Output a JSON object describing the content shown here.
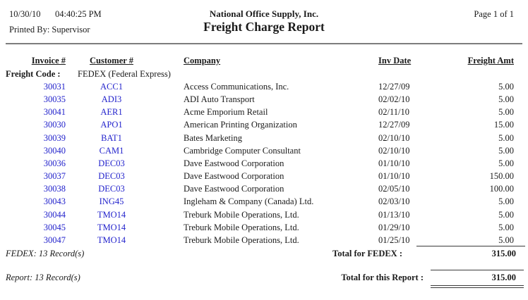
{
  "colors": {
    "link_blue": "#2323cc",
    "text": "#1a1a1a",
    "rule_gray": "#7d7d7d"
  },
  "page_header": {
    "date": "10/30/10",
    "time": "04:40:25 PM",
    "printed_by": "Printed By: Supervisor",
    "company": "National Office Supply, Inc.",
    "title": "Freight Charge Report",
    "page_info": "Page 1 of 1"
  },
  "columns": {
    "invoice": "Invoice #",
    "customer": "Customer #",
    "company": "Company",
    "inv_date": "Inv Date",
    "freight_amt": "Freight Amt"
  },
  "group_header": {
    "label": "Freight Code :",
    "value": "FEDEX (Federal Express)"
  },
  "rows": [
    {
      "invoice": "30031",
      "customer": "ACC1",
      "company": "Access Communications, Inc.",
      "inv_date": "12/27/09",
      "amount": "5.00"
    },
    {
      "invoice": "30035",
      "customer": "ADI3",
      "company": "ADI Auto Transport",
      "inv_date": "02/02/10",
      "amount": "5.00"
    },
    {
      "invoice": "30041",
      "customer": "AER1",
      "company": "Acme Emporium Retail",
      "inv_date": "02/11/10",
      "amount": "5.00"
    },
    {
      "invoice": "30030",
      "customer": "APO1",
      "company": "American Printing Organization",
      "inv_date": "12/27/09",
      "amount": "15.00"
    },
    {
      "invoice": "30039",
      "customer": "BAT1",
      "company": "Bates Marketing",
      "inv_date": "02/10/10",
      "amount": "5.00"
    },
    {
      "invoice": "30040",
      "customer": "CAM1",
      "company": "Cambridge Computer Consultant",
      "inv_date": "02/10/10",
      "amount": "5.00"
    },
    {
      "invoice": "30036",
      "customer": "DEC03",
      "company": "Dave Eastwood Corporation",
      "inv_date": "01/10/10",
      "amount": "5.00"
    },
    {
      "invoice": "30037",
      "customer": "DEC03",
      "company": "Dave Eastwood Corporation",
      "inv_date": "01/10/10",
      "amount": "150.00"
    },
    {
      "invoice": "30038",
      "customer": "DEC03",
      "company": "Dave Eastwood Corporation",
      "inv_date": "02/05/10",
      "amount": "100.00"
    },
    {
      "invoice": "30043",
      "customer": "ING45",
      "company": "Ingleham & Company (Canada) Ltd.",
      "inv_date": "02/03/10",
      "amount": "5.00"
    },
    {
      "invoice": "30044",
      "customer": "TMO14",
      "company": "Treburk Mobile Operations, Ltd.",
      "inv_date": "01/13/10",
      "amount": "5.00"
    },
    {
      "invoice": "30045",
      "customer": "TMO14",
      "company": "Treburk Mobile Operations, Ltd.",
      "inv_date": "01/29/10",
      "amount": "5.00"
    },
    {
      "invoice": "30047",
      "customer": "TMO14",
      "company": "Treburk Mobile Operations, Ltd.",
      "inv_date": "01/25/10",
      "amount": "5.00"
    }
  ],
  "group_footer": {
    "record_count": "FEDEX: 13 Record(s)",
    "total_label": "Total for FEDEX :",
    "total_value": "315.00"
  },
  "report_footer": {
    "record_count": "Report: 13 Record(s)",
    "total_label": "Total for this Report :",
    "total_value": "315.00"
  }
}
